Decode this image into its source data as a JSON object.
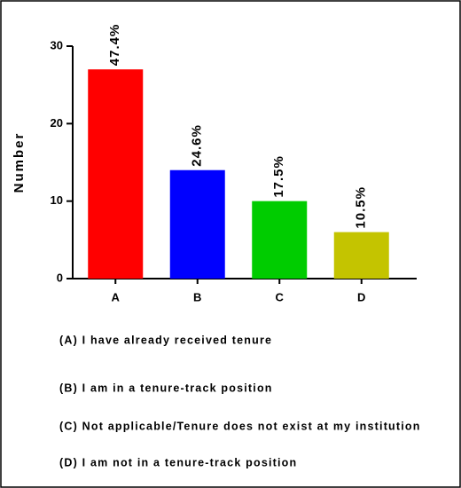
{
  "chart_data": {
    "type": "bar",
    "ylabel": "Number",
    "categories": [
      "A",
      "B",
      "C",
      "D"
    ],
    "values": [
      27,
      14,
      10,
      6
    ],
    "colors": [
      "#ff0000",
      "#0000ff",
      "#00cc00",
      "#c4c400"
    ],
    "bar_annotations": [
      "47.4%",
      "24.6%",
      "17.5%",
      "10.5%"
    ],
    "ylim": [
      0,
      30
    ],
    "yticks": [
      0,
      10,
      20,
      30
    ],
    "notes": [
      "(A) I have already received tenure",
      "(B) I am in a tenure-track position",
      "(C) Not applicable/Tenure does not exist at my institution",
      "(D) I am not in a tenure-track position"
    ]
  }
}
